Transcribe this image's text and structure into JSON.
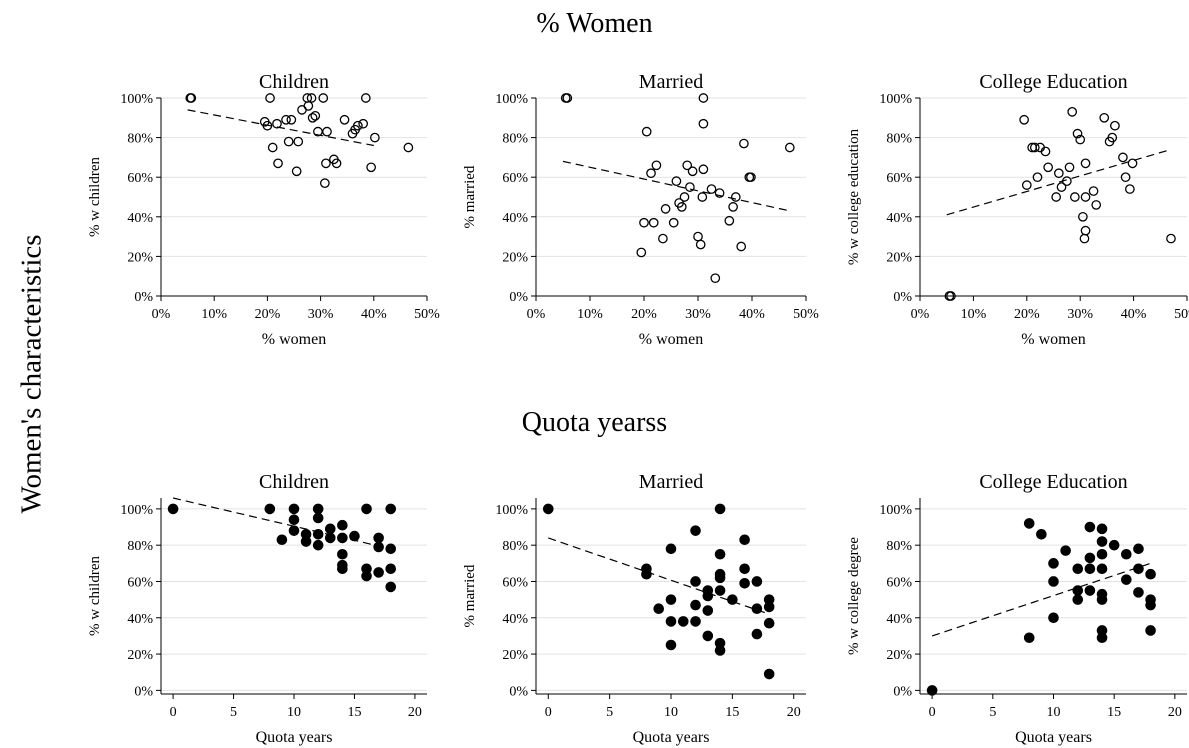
{
  "figure": {
    "side_label": "Women's characteristics",
    "row_titles": [
      "% Women",
      "Quota yearss"
    ]
  },
  "chart_data": [
    {
      "type": "scatter",
      "row": 0,
      "col": 0,
      "marker": "hollow",
      "title": "Children",
      "xlabel": "% women",
      "ylabel": "% w children",
      "xlim": [
        0,
        50
      ],
      "ylim": [
        0,
        100
      ],
      "xticks": [
        0,
        10,
        20,
        30,
        40,
        50
      ],
      "xtick_labels": [
        "0%",
        "10%",
        "20%",
        "30%",
        "40%",
        "50%"
      ],
      "yticks": [
        0,
        20,
        40,
        60,
        80,
        100
      ],
      "ytick_labels": [
        "0%",
        "20%",
        "40%",
        "60%",
        "80%",
        "100%"
      ],
      "grid": true,
      "fit": [
        [
          5,
          94
        ],
        [
          40,
          76
        ]
      ],
      "points": [
        [
          5.5,
          100
        ],
        [
          5.7,
          100
        ],
        [
          19.5,
          88
        ],
        [
          20,
          86
        ],
        [
          20.5,
          100
        ],
        [
          21,
          75
        ],
        [
          21.8,
          87
        ],
        [
          22,
          67
        ],
        [
          23.5,
          89
        ],
        [
          24,
          78
        ],
        [
          24.5,
          89
        ],
        [
          25.5,
          63
        ],
        [
          25.8,
          78
        ],
        [
          26.5,
          94
        ],
        [
          27.5,
          100
        ],
        [
          27.7,
          96
        ],
        [
          28.3,
          100
        ],
        [
          28.5,
          90
        ],
        [
          29,
          91
        ],
        [
          29.5,
          83
        ],
        [
          30.5,
          100
        ],
        [
          30.8,
          57
        ],
        [
          31,
          67
        ],
        [
          31.2,
          83
        ],
        [
          32.5,
          69
        ],
        [
          33,
          67
        ],
        [
          34.5,
          89
        ],
        [
          36,
          82
        ],
        [
          36.5,
          84
        ],
        [
          37,
          86
        ],
        [
          38,
          87
        ],
        [
          38.5,
          100
        ],
        [
          39.5,
          65
        ],
        [
          40.2,
          80
        ],
        [
          46.5,
          75
        ]
      ]
    },
    {
      "type": "scatter",
      "row": 0,
      "col": 1,
      "marker": "hollow",
      "title": "Married",
      "xlabel": "% women",
      "ylabel": "% married",
      "xlim": [
        0,
        50
      ],
      "ylim": [
        0,
        100
      ],
      "xticks": [
        0,
        10,
        20,
        30,
        40,
        50
      ],
      "xtick_labels": [
        "0%",
        "10%",
        "20%",
        "30%",
        "40%",
        "50%"
      ],
      "yticks": [
        0,
        20,
        40,
        60,
        80,
        100
      ],
      "ytick_labels": [
        "0%",
        "20%",
        "40%",
        "60%",
        "80%",
        "100%"
      ],
      "grid": true,
      "fit": [
        [
          5,
          68
        ],
        [
          47,
          43
        ]
      ],
      "points": [
        [
          5.5,
          100
        ],
        [
          5.8,
          100
        ],
        [
          19.5,
          22
        ],
        [
          20,
          37
        ],
        [
          20.5,
          83
        ],
        [
          21.3,
          62
        ],
        [
          21.8,
          37
        ],
        [
          22.3,
          66
        ],
        [
          23.5,
          29
        ],
        [
          24,
          44
        ],
        [
          25.5,
          37
        ],
        [
          26,
          58
        ],
        [
          26.5,
          47
        ],
        [
          27,
          45
        ],
        [
          27.5,
          50
        ],
        [
          28,
          66
        ],
        [
          28.5,
          55
        ],
        [
          29,
          63
        ],
        [
          30,
          30
        ],
        [
          30.5,
          26
        ],
        [
          30.8,
          50
        ],
        [
          31,
          64
        ],
        [
          31,
          100
        ],
        [
          31,
          87
        ],
        [
          32.5,
          54
        ],
        [
          33.2,
          9
        ],
        [
          34,
          52
        ],
        [
          35.8,
          38
        ],
        [
          36.5,
          45
        ],
        [
          37,
          50
        ],
        [
          38,
          25
        ],
        [
          38.5,
          77
        ],
        [
          39.5,
          60
        ],
        [
          39.8,
          60
        ],
        [
          47,
          75
        ]
      ]
    },
    {
      "type": "scatter",
      "row": 0,
      "col": 2,
      "marker": "hollow",
      "title": "College Education",
      "xlabel": "% women",
      "ylabel": "% w college education",
      "xlim": [
        0,
        50
      ],
      "ylim": [
        0,
        100
      ],
      "xticks": [
        0,
        10,
        20,
        30,
        40,
        50
      ],
      "xtick_labels": [
        "0%",
        "10%",
        "20%",
        "30%",
        "40%",
        "50%"
      ],
      "yticks": [
        0,
        20,
        40,
        60,
        80,
        100
      ],
      "ytick_labels": [
        "0%",
        "20%",
        "40%",
        "60%",
        "80%",
        "100%"
      ],
      "grid": true,
      "fit": [
        [
          5,
          41
        ],
        [
          47,
          74
        ]
      ],
      "points": [
        [
          5.5,
          0
        ],
        [
          5.8,
          0
        ],
        [
          19.5,
          89
        ],
        [
          20,
          56
        ],
        [
          21,
          75
        ],
        [
          21.5,
          75
        ],
        [
          22,
          60
        ],
        [
          22.5,
          75
        ],
        [
          23.5,
          73
        ],
        [
          24,
          65
        ],
        [
          25.5,
          50
        ],
        [
          26,
          62
        ],
        [
          26.5,
          55
        ],
        [
          27.5,
          58
        ],
        [
          28,
          65
        ],
        [
          28.5,
          93
        ],
        [
          29,
          50
        ],
        [
          29.5,
          82
        ],
        [
          30,
          79
        ],
        [
          30.5,
          40
        ],
        [
          30.8,
          29
        ],
        [
          31,
          50
        ],
        [
          31,
          33
        ],
        [
          31,
          67
        ],
        [
          32.5,
          53
        ],
        [
          33,
          46
        ],
        [
          34.5,
          90
        ],
        [
          35.5,
          78
        ],
        [
          36,
          80
        ],
        [
          36.5,
          86
        ],
        [
          38,
          70
        ],
        [
          38.5,
          60
        ],
        [
          39.3,
          54
        ],
        [
          39.8,
          67
        ],
        [
          47,
          29
        ]
      ]
    },
    {
      "type": "scatter",
      "row": 1,
      "col": 0,
      "marker": "filled",
      "title": "Children",
      "xlabel": "Quota years",
      "ylabel": "% w children",
      "xlim": [
        -1,
        21
      ],
      "ylim": [
        -2,
        106
      ],
      "xticks": [
        0,
        5,
        10,
        15,
        20
      ],
      "xtick_labels": [
        "0",
        "5",
        "10",
        "15",
        "20"
      ],
      "yticks": [
        0,
        20,
        40,
        60,
        80,
        100
      ],
      "ytick_labels": [
        "0%",
        "20%",
        "40%",
        "60%",
        "80%",
        "100%"
      ],
      "grid": true,
      "fit": [
        [
          0,
          106
        ],
        [
          18,
          78
        ]
      ],
      "points": [
        [
          0,
          100
        ],
        [
          8,
          100
        ],
        [
          9,
          83
        ],
        [
          10,
          100
        ],
        [
          10,
          88
        ],
        [
          10,
          94
        ],
        [
          11,
          82
        ],
        [
          11,
          86
        ],
        [
          12,
          100
        ],
        [
          12,
          80
        ],
        [
          12,
          86
        ],
        [
          12,
          95
        ],
        [
          13,
          89
        ],
        [
          13,
          84
        ],
        [
          14,
          91
        ],
        [
          14,
          84
        ],
        [
          14,
          75
        ],
        [
          14,
          69
        ],
        [
          14,
          67
        ],
        [
          15,
          85
        ],
        [
          16,
          100
        ],
        [
          16,
          67
        ],
        [
          16,
          63
        ],
        [
          17,
          84
        ],
        [
          17,
          79
        ],
        [
          17,
          65
        ],
        [
          18,
          100
        ],
        [
          18,
          78
        ],
        [
          18,
          67
        ],
        [
          18,
          57
        ]
      ]
    },
    {
      "type": "scatter",
      "row": 1,
      "col": 1,
      "marker": "filled",
      "title": "Married",
      "xlabel": "Quota years",
      "ylabel": "% married",
      "xlim": [
        -1,
        21
      ],
      "ylim": [
        -2,
        106
      ],
      "xticks": [
        0,
        5,
        10,
        15,
        20
      ],
      "xtick_labels": [
        "0",
        "5",
        "10",
        "15",
        "20"
      ],
      "yticks": [
        0,
        20,
        40,
        60,
        80,
        100
      ],
      "ytick_labels": [
        "0%",
        "20%",
        "40%",
        "60%",
        "80%",
        "100%"
      ],
      "grid": true,
      "fit": [
        [
          0,
          84
        ],
        [
          18,
          42
        ]
      ],
      "points": [
        [
          0,
          100
        ],
        [
          8,
          67
        ],
        [
          8,
          64
        ],
        [
          9,
          45
        ],
        [
          10,
          78
        ],
        [
          10,
          50
        ],
        [
          10,
          38
        ],
        [
          10,
          25
        ],
        [
          11,
          38
        ],
        [
          12,
          88
        ],
        [
          12,
          60
        ],
        [
          12,
          47
        ],
        [
          12,
          38
        ],
        [
          13,
          55
        ],
        [
          13,
          52
        ],
        [
          13,
          44
        ],
        [
          13,
          30
        ],
        [
          14,
          100
        ],
        [
          14,
          75
        ],
        [
          14,
          64
        ],
        [
          14,
          62
        ],
        [
          14,
          55
        ],
        [
          14,
          26
        ],
        [
          14,
          22
        ],
        [
          15,
          50
        ],
        [
          16,
          83
        ],
        [
          16,
          67
        ],
        [
          16,
          59
        ],
        [
          17,
          60
        ],
        [
          17,
          45
        ],
        [
          17,
          31
        ],
        [
          18,
          50
        ],
        [
          18,
          46
        ],
        [
          18,
          37
        ],
        [
          18,
          9
        ]
      ]
    },
    {
      "type": "scatter",
      "row": 1,
      "col": 2,
      "marker": "filled",
      "title": "College Education",
      "xlabel": "Quota years",
      "ylabel": "% w college degree",
      "xlim": [
        -1,
        21
      ],
      "ylim": [
        -2,
        106
      ],
      "xticks": [
        0,
        5,
        10,
        15,
        20
      ],
      "xtick_labels": [
        "0",
        "5",
        "10",
        "15",
        "20"
      ],
      "yticks": [
        0,
        20,
        40,
        60,
        80,
        100
      ],
      "ytick_labels": [
        "0%",
        "20%",
        "40%",
        "60%",
        "80%",
        "100%"
      ],
      "grid": true,
      "fit": [
        [
          0,
          30
        ],
        [
          18,
          70
        ]
      ],
      "points": [
        [
          0,
          0
        ],
        [
          8,
          92
        ],
        [
          8,
          29
        ],
        [
          9,
          86
        ],
        [
          10,
          70
        ],
        [
          10,
          60
        ],
        [
          10,
          40
        ],
        [
          11,
          77
        ],
        [
          12,
          67
        ],
        [
          12,
          55
        ],
        [
          12,
          50
        ],
        [
          13,
          90
        ],
        [
          13,
          73
        ],
        [
          13,
          67
        ],
        [
          13,
          55
        ],
        [
          14,
          89
        ],
        [
          14,
          82
        ],
        [
          14,
          75
        ],
        [
          14,
          67
        ],
        [
          14,
          53
        ],
        [
          14,
          50
        ],
        [
          14,
          33
        ],
        [
          14,
          29
        ],
        [
          15,
          80
        ],
        [
          16,
          75
        ],
        [
          16,
          61
        ],
        [
          17,
          78
        ],
        [
          17,
          67
        ],
        [
          17,
          54
        ],
        [
          18,
          64
        ],
        [
          18,
          50
        ],
        [
          18,
          47
        ],
        [
          18,
          33
        ]
      ]
    }
  ]
}
